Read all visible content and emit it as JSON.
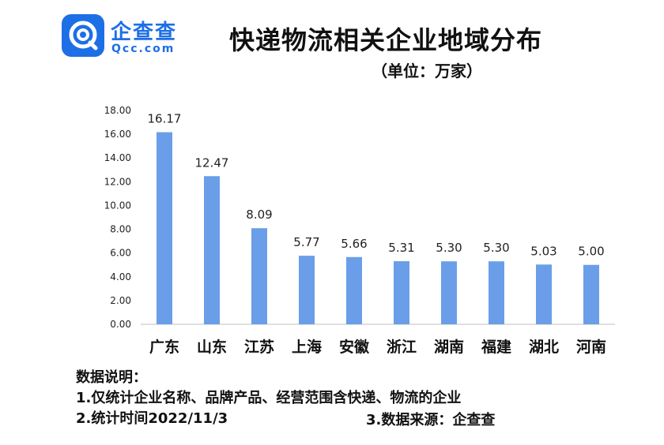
{
  "logo": {
    "name": "企查查",
    "domain": "Qcc.com",
    "color": "#1d6fe6"
  },
  "chart_data": {
    "type": "bar",
    "title": "快递物流相关企业地域分布",
    "subtitle": "（单位：万家）",
    "categories": [
      "广东",
      "山东",
      "江苏",
      "上海",
      "安徽",
      "浙江",
      "湖南",
      "福建",
      "湖北",
      "河南"
    ],
    "values": [
      16.17,
      12.47,
      8.09,
      5.77,
      5.66,
      5.31,
      5.3,
      5.3,
      5.03,
      5.0
    ],
    "value_labels": [
      "16.17",
      "12.47",
      "8.09",
      "5.77",
      "5.66",
      "5.31",
      "5.30",
      "5.30",
      "5.03",
      "5.00"
    ],
    "ylim": [
      0,
      18
    ],
    "yticks": [
      "0.00",
      "2.00",
      "4.00",
      "6.00",
      "8.00",
      "10.00",
      "12.00",
      "14.00",
      "16.00",
      "18.00"
    ],
    "grid": false,
    "legend": "none",
    "bar_color": "#6a9ee8",
    "xlabel": "",
    "ylabel": ""
  },
  "notes": {
    "heading": "数据说明：",
    "line1": "1.仅统计企业名称、品牌产品、经营范围含快递、物流的企业",
    "line2": "2.统计时间2022/11/3",
    "source": "3.数据来源：企查查"
  }
}
